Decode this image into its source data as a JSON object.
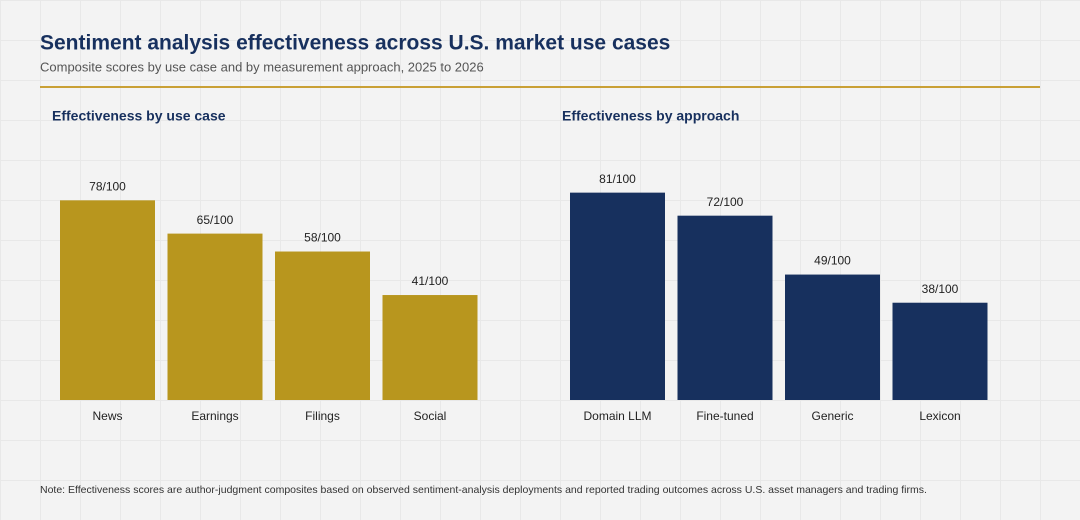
{
  "title": "Sentiment analysis effectiveness across U.S. market use cases",
  "subtitle": "Composite scores by use case and by measurement approach, 2025 to 2026",
  "note": "Note: Effectiveness scores are author-judgment composites based on observed sentiment-analysis deployments and reported trading outcomes across U.S. asset managers and trading firms.",
  "chart_data": [
    {
      "type": "bar",
      "title": "Effectiveness by use case",
      "categories": [
        "News",
        "Earnings",
        "Filings",
        "Social"
      ],
      "values": [
        78,
        65,
        58,
        41
      ],
      "value_labels": [
        "78/100",
        "65/100",
        "58/100",
        "41/100"
      ],
      "color": "#b8961e",
      "ylim": [
        0,
        100
      ]
    },
    {
      "type": "bar",
      "title": "Effectiveness by approach",
      "categories": [
        "Domain LLM",
        "Fine-tuned",
        "Generic",
        "Lexicon"
      ],
      "values": [
        81,
        72,
        49,
        38
      ],
      "value_labels": [
        "81/100",
        "72/100",
        "49/100",
        "38/100"
      ],
      "color": "#17305e",
      "ylim": [
        0,
        100
      ]
    }
  ]
}
